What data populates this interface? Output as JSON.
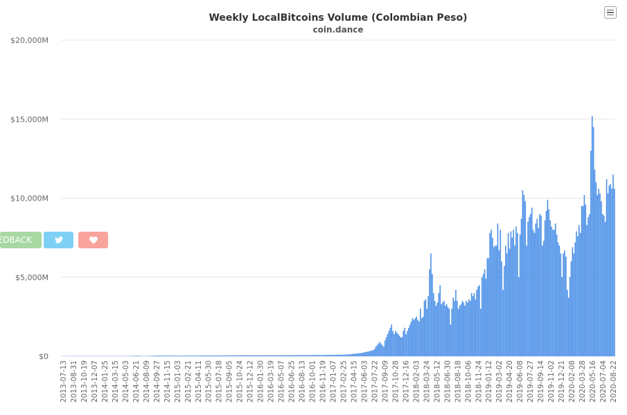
{
  "chart_data": {
    "type": "bar",
    "title": "Weekly LocalBitcoins Volume (Colombian Peso)",
    "subtitle": "coin.dance",
    "xlabel": "",
    "ylabel": "",
    "ylim": [
      0,
      20000
    ],
    "y_ticks": [
      "$0",
      "$5,000M",
      "$10,000M",
      "$15,000M",
      "$20,000M"
    ],
    "y_tick_values": [
      0,
      5000,
      10000,
      15000,
      20000
    ],
    "x_tick_labels": [
      "2013-07-13",
      "2013-08-31",
      "2013-10-19",
      "2013-12-07",
      "2014-01-25",
      "2014-03-15",
      "2014-05-03",
      "2014-06-21",
      "2014-08-09",
      "2014-09-27",
      "2014-11-15",
      "2015-01-03",
      "2015-02-21",
      "2015-04-11",
      "2015-05-30",
      "2015-07-18",
      "2015-09-05",
      "2015-10-24",
      "2015-12-12",
      "2016-01-30",
      "2016-03-19",
      "2016-05-07",
      "2016-06-25",
      "2016-08-13",
      "2016-10-01",
      "2016-11-19",
      "2017-01-07",
      "2017-02-25",
      "2017-04-15",
      "2017-06-03",
      "2017-07-22",
      "2017-09-09",
      "2017-10-28",
      "2017-12-16",
      "2018-02-03",
      "2018-03-24",
      "2018-05-12",
      "2018-06-30",
      "2018-08-18",
      "2018-10-06",
      "2018-11-24",
      "2019-01-12",
      "2019-03-02",
      "2019-04-20",
      "2019-06-08",
      "2019-07-27",
      "2019-09-14",
      "2019-11-02",
      "2019-12-21",
      "2020-02-08",
      "2020-03-28",
      "2020-05-16",
      "2020-07-04",
      "2020-08-22"
    ],
    "unit": "$ millions",
    "series_values": [
      5,
      5,
      5,
      5,
      5,
      5,
      5,
      5,
      5,
      5,
      6,
      6,
      6,
      6,
      6,
      6,
      5,
      5,
      5,
      5,
      5,
      5,
      5,
      5,
      5,
      5,
      6,
      6,
      6,
      6,
      6,
      6,
      5,
      5,
      5,
      5,
      5,
      5,
      5,
      5,
      5,
      5,
      6,
      6,
      6,
      6,
      6,
      6,
      10,
      15,
      20,
      25,
      30,
      35,
      25,
      20,
      15,
      10,
      10,
      10,
      10,
      10,
      15,
      20,
      25,
      30,
      35,
      35,
      35,
      35,
      40,
      40,
      40,
      40,
      40,
      40,
      40,
      40,
      40,
      40,
      40,
      40,
      35,
      35,
      35,
      35,
      35,
      35,
      35,
      35,
      40,
      40,
      40,
      40,
      40,
      40,
      40,
      40,
      40,
      40,
      40,
      40,
      45,
      45,
      45,
      45,
      45,
      45,
      45,
      45,
      50,
      50,
      50,
      50,
      50,
      50,
      50,
      50,
      50,
      50,
      50,
      50,
      55,
      55,
      55,
      55,
      55,
      55,
      55,
      55,
      60,
      60,
      60,
      60,
      60,
      60,
      60,
      60,
      60,
      60,
      60,
      60,
      60,
      60,
      60,
      60,
      60,
      60,
      60,
      60,
      60,
      60,
      60,
      60,
      60,
      60,
      60,
      60,
      60,
      60,
      60,
      60,
      65,
      65,
      65,
      65,
      65,
      65,
      65,
      65,
      65,
      65,
      65,
      65,
      70,
      70,
      70,
      70,
      70,
      70,
      70,
      70,
      70,
      70,
      70,
      70,
      75,
      75,
      75,
      75,
      75,
      75,
      75,
      75,
      80,
      80,
      80,
      80,
      85,
      85,
      85,
      85,
      90,
      90,
      90,
      90,
      95,
      95,
      95,
      95,
      100,
      100,
      110,
      110,
      120,
      120,
      130,
      140,
      150,
      160,
      170,
      180,
      190,
      200,
      210,
      220,
      240,
      260,
      280,
      300,
      320,
      340,
      360,
      380,
      450,
      600,
      700,
      800,
      900,
      800,
      700,
      600,
      1000,
      1200,
      1400,
      1600,
      1800,
      2000,
      1600,
      1400,
      1600,
      1500,
      1400,
      1300,
      1200,
      1200,
      1600,
      1800,
      1400,
      1600,
      1800,
      2000,
      2200,
      2400,
      2300,
      2400,
      2500,
      2300,
      2200,
      3000,
      2400,
      2500,
      3500,
      3600,
      3000,
      3800,
      5500,
      6500,
      5200,
      4000,
      3500,
      3200,
      3400,
      4000,
      4500,
      3300,
      3400,
      3500,
      3200,
      3300,
      3100,
      3000,
      2000,
      3000,
      3700,
      3500,
      4200,
      3500,
      3000,
      3200,
      3300,
      3500,
      3400,
      3200,
      3500,
      3400,
      3600,
      3500,
      4000,
      3800,
      4000,
      3600,
      4200,
      4400,
      4500,
      3000,
      5000,
      5200,
      5500,
      4900,
      6200,
      6200,
      7800,
      8000,
      7500,
      6900,
      7000,
      7000,
      8400,
      6700,
      8000,
      6000,
      4200,
      5700,
      7000,
      6500,
      7800,
      6800,
      7900,
      7500,
      8000,
      7000,
      8200,
      7800,
      5000,
      7700,
      8700,
      10500,
      10200,
      9800,
      7000,
      8500,
      8800,
      9000,
      9400,
      8000,
      7800,
      8400,
      8700,
      8100,
      9000,
      8900,
      7000,
      7300,
      8600,
      9200,
      9900,
      9300,
      8600,
      8200,
      8000,
      8000,
      8400,
      7700,
      7200,
      7000,
      6500,
      5000,
      6500,
      6700,
      6300,
      4200,
      3700,
      5000,
      6000,
      6900,
      6500,
      7200,
      7900,
      7600,
      8300,
      7800,
      9500,
      9500,
      10200,
      9600,
      8300,
      8800,
      9000,
      13000,
      15200,
      14500,
      11800,
      11000,
      10200,
      10600,
      10300,
      9800,
      9000,
      8900,
      8500,
      11200,
      10300,
      10800,
      10900,
      10600,
      11500,
      10600
    ]
  },
  "ui": {
    "feedback_label": "FEEDBACK",
    "twitter_icon": "twitter-icon",
    "heart_icon": "heart-icon",
    "menu_icon": "hamburger-menu-icon"
  },
  "colors": {
    "bar": "#4a8fe7",
    "bar_stroke": "#3a7fd8",
    "grid": "#e6e6e6",
    "text": "#333333",
    "axis_text": "#666666"
  }
}
